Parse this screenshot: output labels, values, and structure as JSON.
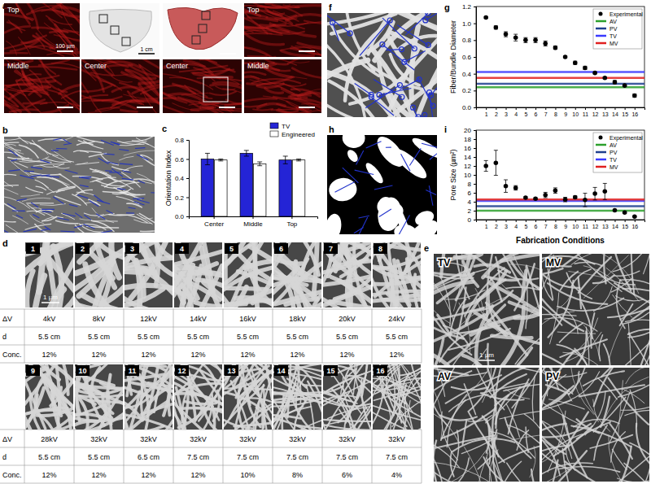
{
  "chart_data": [
    {
      "type": "bar",
      "categories": [
        "Center",
        "Middle",
        "Top"
      ],
      "y_label": "Orientation Index",
      "ylim": [
        0,
        0.8
      ],
      "yticks": [
        {
          "value": 0,
          "label": "0.0"
        },
        0.2,
        0.4,
        0.6,
        0.8
      ],
      "legend": "upper right",
      "series": [
        {
          "name": "TV",
          "color": "#2424d6",
          "values": [
            0.6,
            0.66,
            0.59
          ],
          "errors": [
            0.06,
            0.03,
            0.04
          ]
        },
        {
          "name": "Engineered",
          "color": "#ffffff",
          "values": [
            0.59,
            0.55,
            0.59
          ],
          "errors": [
            0.01,
            0.02,
            0.01
          ]
        }
      ]
    },
    {
      "type": "scatter",
      "x": [
        1,
        2,
        3,
        4,
        5,
        6,
        7,
        8,
        9,
        10,
        11,
        12,
        13,
        14,
        15,
        16
      ],
      "xlim": [
        0,
        17
      ],
      "xticks": [
        1,
        2,
        3,
        4,
        5,
        6,
        7,
        8,
        9,
        10,
        11,
        12,
        13,
        14,
        15,
        16
      ],
      "y_label": "Fiber/Bundle Diameter",
      "ylim": [
        0,
        1.2
      ],
      "yticks": [
        {
          "value": 0,
          "label": "0.0"
        },
        0.2,
        0.4,
        0.6,
        0.8,
        {
          "value": 1,
          "label": "1.0"
        },
        1.2
      ],
      "legend": "upper right",
      "series": [
        {
          "name": "Experimental",
          "color": "#000000",
          "marker": "circle",
          "values": [
            1.07,
            0.95,
            0.87,
            0.83,
            0.8,
            0.8,
            0.76,
            0.71,
            0.6,
            0.53,
            0.47,
            0.41,
            0.35,
            0.3,
            0.26,
            0.14
          ],
          "errors": [
            0.01,
            0.02,
            0.03,
            0.04,
            0.03,
            0.03,
            0.03,
            0.02,
            0.01,
            0.02,
            0.02,
            0.01,
            0.01,
            0.02,
            0.01,
            0.02
          ]
        }
      ],
      "reference_lines": [
        {
          "name": "AV",
          "color": "#2ca02c",
          "value": 0.24
        },
        {
          "name": "PV",
          "color": "#1f3f8f",
          "value": 0.28
        },
        {
          "name": "TV",
          "color": "#3a3aff",
          "value": 0.42
        },
        {
          "name": "MV",
          "color": "#e02020",
          "value": 0.35
        }
      ]
    },
    {
      "type": "scatter",
      "x": [
        1,
        2,
        3,
        4,
        5,
        6,
        7,
        8,
        9,
        10,
        11,
        12,
        13,
        14,
        15,
        16
      ],
      "xlim": [
        0,
        17
      ],
      "xticks": [
        1,
        2,
        3,
        4,
        5,
        6,
        7,
        8,
        9,
        10,
        11,
        12,
        13,
        14,
        15,
        16
      ],
      "x_label": "Fabrication Conditions",
      "y_label": "Pore Size (µm²)",
      "ylim": [
        0,
        20
      ],
      "yticks": [
        0,
        2,
        4,
        6,
        8,
        10,
        12,
        14,
        16,
        18,
        20
      ],
      "legend": "upper right",
      "series": [
        {
          "name": "Experimental",
          "color": "#000000",
          "marker": "circle",
          "values": [
            12,
            12.7,
            7.5,
            7.1,
            4.9,
            4.7,
            5.5,
            6.5,
            4.5,
            5.0,
            4.4,
            5.8,
            6.3,
            2.1,
            1.6,
            0.7
          ],
          "errors": [
            1.2,
            2.8,
            1.4,
            0.5,
            0.2,
            0.2,
            0.6,
            0.6,
            0.5,
            0.3,
            1.5,
            1.4,
            1.8,
            0.2,
            0.2,
            0.1
          ]
        }
      ],
      "reference_lines": [
        {
          "name": "AV",
          "color": "#2ca02c",
          "value": 2.0
        },
        {
          "name": "PV",
          "color": "#1f3f8f",
          "value": 3.0
        },
        {
          "name": "TV",
          "color": "#3a3aff",
          "value": 4.2
        },
        {
          "name": "MV",
          "color": "#e02020",
          "value": 4.5
        }
      ]
    }
  ],
  "panel_labels": [
    "a",
    "b",
    "c",
    "d",
    "e",
    "f",
    "g",
    "h",
    "i"
  ],
  "panel_a": {
    "tiles": [
      "Top",
      "Middle",
      "Center",
      "Top",
      "Middle",
      "Center"
    ],
    "scale_fluorescence": "100 µm",
    "scale_photo": "1 cm"
  },
  "panel_d": {
    "scale": "1 µm",
    "row_headers": [
      "ΔV",
      "d",
      "Conc."
    ],
    "conditions": [
      {
        "id": 1,
        "dv": "4kV",
        "d": "5.5 cm",
        "conc": "12%"
      },
      {
        "id": 2,
        "dv": "8kV",
        "d": "5.5 cm",
        "conc": "12%"
      },
      {
        "id": 3,
        "dv": "12kV",
        "d": "5.5 cm",
        "conc": "12%"
      },
      {
        "id": 4,
        "dv": "14kV",
        "d": "5.5 cm",
        "conc": "12%"
      },
      {
        "id": 5,
        "dv": "16kV",
        "d": "5.5 cm",
        "conc": "12%"
      },
      {
        "id": 6,
        "dv": "18kV",
        "d": "5.5 cm",
        "conc": "12%"
      },
      {
        "id": 7,
        "dv": "20kV",
        "d": "5.5 cm",
        "conc": "12%"
      },
      {
        "id": 8,
        "dv": "24kV",
        "d": "5.5 cm",
        "conc": "12%"
      },
      {
        "id": 9,
        "dv": "28kV",
        "d": "5.5 cm",
        "conc": "12%"
      },
      {
        "id": 10,
        "dv": "32kV",
        "d": "5.5 cm",
        "conc": "12%"
      },
      {
        "id": 11,
        "dv": "32kV",
        "d": "6.5 cm",
        "conc": "12%"
      },
      {
        "id": 12,
        "dv": "32kV",
        "d": "7.5 cm",
        "conc": "12%"
      },
      {
        "id": 13,
        "dv": "32kV",
        "d": "7.5 cm",
        "conc": "10%"
      },
      {
        "id": 14,
        "dv": "32kV",
        "d": "7.5 cm",
        "conc": "8%"
      },
      {
        "id": 15,
        "dv": "32kV",
        "d": "7.5 cm",
        "conc": "6%"
      },
      {
        "id": 16,
        "dv": "32kV",
        "d": "7.5 cm",
        "conc": "4%"
      }
    ]
  },
  "panel_e": {
    "tiles": [
      "TV",
      "MV",
      "AV",
      "PV"
    ],
    "scale": "1 µm"
  }
}
